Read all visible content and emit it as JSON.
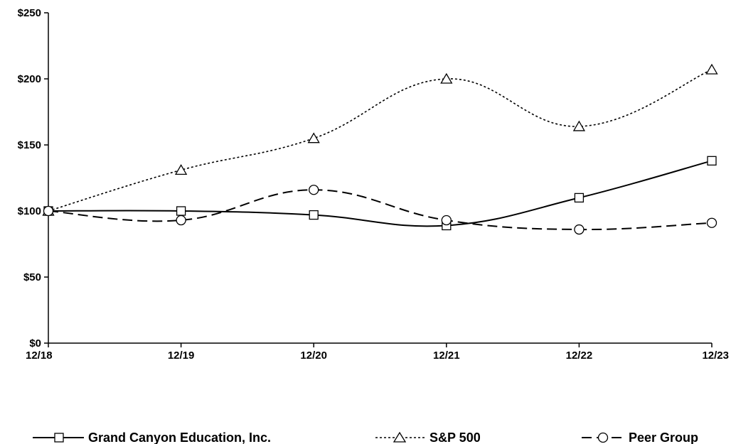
{
  "chart_data": {
    "type": "line",
    "title": "",
    "xlabel": "",
    "ylabel": "",
    "categories": [
      "12/18",
      "12/19",
      "12/20",
      "12/21",
      "12/22",
      "12/23"
    ],
    "y_ticks": [
      "$0",
      "$50",
      "$100",
      "$150",
      "$200",
      "$250"
    ],
    "y_tick_values": [
      0,
      50,
      100,
      150,
      200,
      250
    ],
    "ylim": [
      0,
      250
    ],
    "grid": false,
    "legend_position": "bottom",
    "series": [
      {
        "name": "Grand Canyon Education, Inc.",
        "values": [
          100,
          100,
          97,
          89,
          110,
          138
        ],
        "line_style": "solid",
        "marker": "square"
      },
      {
        "name": "S&P 500",
        "values": [
          100,
          131,
          155,
          200,
          164,
          207
        ],
        "line_style": "dotted",
        "marker": "triangle"
      },
      {
        "name": "Peer Group",
        "values": [
          100,
          93,
          116,
          93,
          86,
          91
        ],
        "line_style": "dashed",
        "marker": "circle"
      }
    ]
  }
}
